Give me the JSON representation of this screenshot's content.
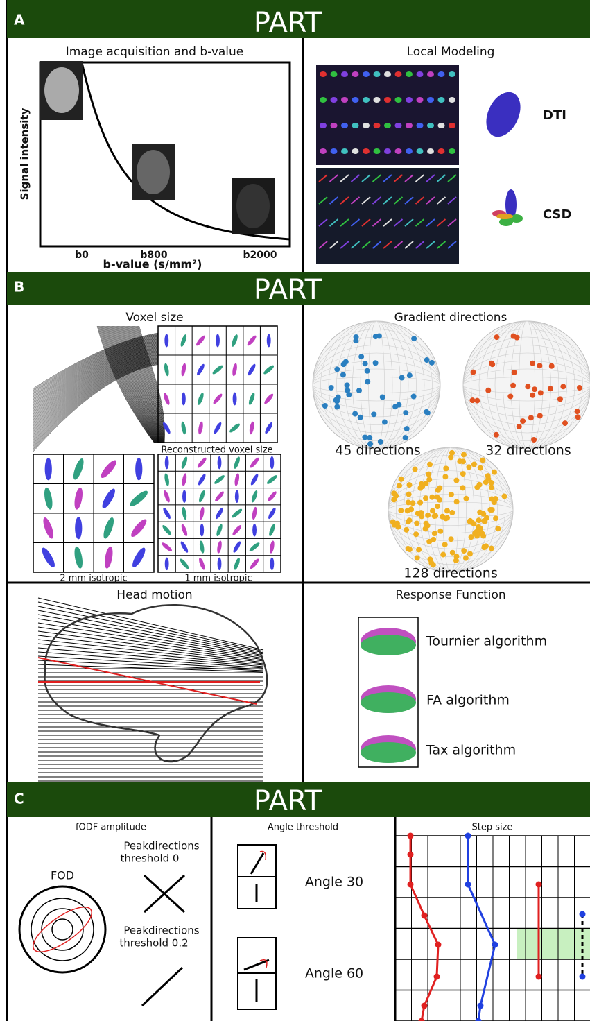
{
  "part_a": {
    "letter": "A",
    "title": "PART",
    "acquisition": {
      "title": "Image acquisition and b-value",
      "y_label": "Signal intensity",
      "x_label": "b-value (s/mm²)",
      "ticks": [
        "b0",
        "b800",
        "b2000"
      ]
    },
    "modeling": {
      "title": "Local Modeling",
      "labels": [
        "DTI",
        "CSD"
      ]
    }
  },
  "part_b": {
    "letter": "B",
    "title": "PART",
    "voxel": {
      "title": "Voxel size",
      "captions": [
        "Reconstructed voxel size",
        "2 mm isotropic",
        "1 mm isotropic"
      ]
    },
    "gradient": {
      "title": "Gradient directions",
      "captions": [
        "45 directions",
        "32 directions",
        "128 directions"
      ]
    },
    "motion": {
      "title": "Head motion"
    },
    "response": {
      "title": "Response Function",
      "labels": [
        "Tournier algorithm",
        "FA algorithm",
        "Tax algorithm"
      ]
    }
  },
  "part_c": {
    "letter": "C",
    "title": "PART",
    "fodf": {
      "title": "fODF amplitude",
      "fod": "FOD",
      "thresholds": [
        [
          "Peakdirections",
          "threshold 0"
        ],
        [
          "Peakdirections",
          "threshold 0.2"
        ]
      ]
    },
    "angle": {
      "title": "Angle threshold",
      "labels": [
        "Angle 30",
        "Angle 60"
      ]
    },
    "step": {
      "title": "Step size"
    }
  }
}
